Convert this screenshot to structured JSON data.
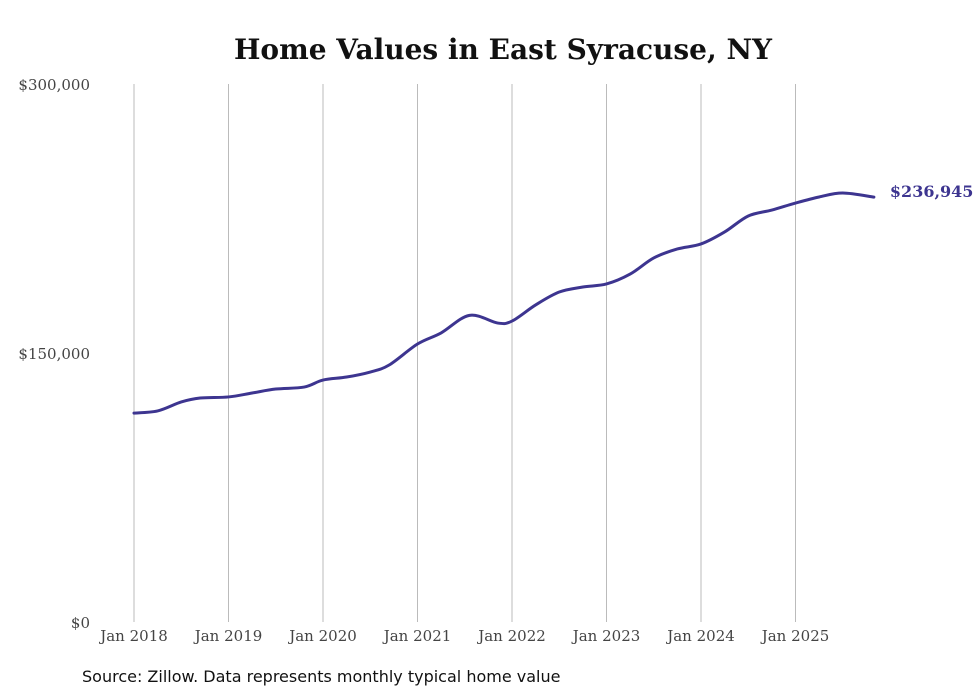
{
  "chart_data": {
    "type": "line",
    "title": "Home Values in East Syracuse, NY",
    "xlabel": "",
    "ylabel": "",
    "ylim": [
      0,
      300000
    ],
    "xlim": [
      2018.0,
      2025.83
    ],
    "y_ticks": [
      0,
      150000,
      300000
    ],
    "y_tick_labels": [
      "$0",
      "$150,000",
      "$300,000"
    ],
    "x_ticks": [
      2018,
      2019,
      2020,
      2021,
      2022,
      2023,
      2024,
      2025
    ],
    "x_tick_labels": [
      "Jan 2018",
      "Jan 2019",
      "Jan 2020",
      "Jan 2021",
      "Jan 2022",
      "Jan 2023",
      "Jan 2024",
      "Jan 2025"
    ],
    "grid": "vertical",
    "line_color": "#3d3590",
    "series": [
      {
        "name": "Typical home value",
        "x": [
          2018.0,
          2018.25,
          2018.5,
          2018.7,
          2019.0,
          2019.25,
          2019.5,
          2019.8,
          2020.0,
          2020.25,
          2020.5,
          2020.7,
          2021.0,
          2021.25,
          2021.55,
          2021.85,
          2022.0,
          2022.25,
          2022.5,
          2022.75,
          2023.0,
          2023.25,
          2023.5,
          2023.75,
          2024.0,
          2024.25,
          2024.5,
          2024.75,
          2025.0,
          2025.25,
          2025.5,
          2025.83
        ],
        "values": [
          116500,
          117700,
          122700,
          124900,
          125500,
          127700,
          129900,
          131000,
          134900,
          136600,
          139400,
          143300,
          155000,
          161200,
          171000,
          166700,
          167800,
          176800,
          184000,
          186800,
          188500,
          194000,
          203000,
          208000,
          210800,
          217500,
          226400,
          229700,
          233600,
          237000,
          239200,
          236945
        ]
      }
    ],
    "end_label": "$236,945"
  },
  "footer": {
    "source": "Source: Zillow. Data represents monthly typical home value"
  }
}
